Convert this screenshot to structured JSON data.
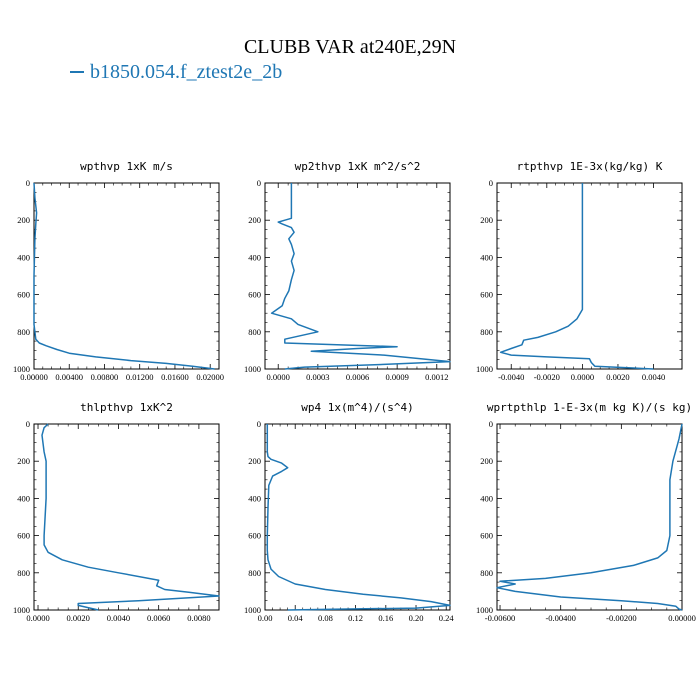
{
  "figure": {
    "title": "CLUBB VAR at240E,29N",
    "legend_label": "b1850.054.f_ztest2e_2b",
    "line_color": "#1f77b4"
  },
  "chart_data": [
    {
      "type": "line",
      "title": "wpthvp  1xK m/s",
      "xlim": [
        0,
        0.021
      ],
      "ylim": [
        1000,
        0
      ],
      "xticks": [
        0,
        0.004,
        0.008,
        0.012,
        0.016,
        0.02
      ],
      "xtick_labels": [
        "0.00000",
        "0.00400",
        "0.00800",
        "0.01200",
        "0.01600",
        "0.02000"
      ],
      "yticks": [
        0,
        200,
        400,
        600,
        800,
        1000
      ],
      "ytick_labels": [
        "0",
        "200",
        "400",
        "600",
        "800",
        "1000"
      ],
      "series": [
        {
          "x": [
            0,
            0.0001,
            0.0003,
            0.0002,
            0.0001,
            0,
            0,
            0.0001,
            0.0002,
            0.0006,
            0.0014,
            0.0026,
            0.004,
            0.007,
            0.011,
            0.015,
            0.018,
            0.0205
          ],
          "y": [
            0,
            80,
            160,
            220,
            300,
            500,
            760,
            800,
            840,
            860,
            875,
            895,
            915,
            935,
            955,
            970,
            985,
            1000
          ]
        }
      ]
    },
    {
      "type": "line",
      "title": "wp2thvp  1xK m^2/s^2",
      "xlim": [
        -0.0001,
        0.0013
      ],
      "ylim": [
        1000,
        0
      ],
      "xticks": [
        0,
        0.0003,
        0.0006,
        0.0009,
        0.0012
      ],
      "xtick_labels": [
        "0.0000",
        "0.0003",
        "0.0006",
        "0.0009",
        "0.0012"
      ],
      "yticks": [
        0,
        200,
        400,
        600,
        800,
        1000
      ],
      "ytick_labels": [
        "0",
        "200",
        "400",
        "600",
        "800",
        "1000"
      ],
      "series": [
        {
          "x": [
            0.0001,
            0.0001,
            0.0001,
            5e-05,
            0,
            3e-05,
            0.0001,
            0.00012,
            8e-05,
            0.0001,
            0.00012,
            0.0001,
            0.00012,
            0.0001,
            8e-05,
            5e-05,
            3e-05,
            -5e-05,
            0.0001,
            0.00015,
            0.0003,
            5e-05,
            5e-05,
            0.0009,
            0.0006,
            0.00025,
            0.0008,
            0.0013,
            0.0008,
            0.0002,
            5e-05
          ],
          "y": [
            0,
            100,
            190,
            200,
            210,
            220,
            240,
            265,
            300,
            330,
            380,
            420,
            470,
            520,
            580,
            620,
            660,
            700,
            730,
            760,
            800,
            840,
            860,
            880,
            890,
            905,
            925,
            960,
            975,
            990,
            1000
          ]
        }
      ]
    },
    {
      "type": "line",
      "title": "rtpthvp  1E-3x(kg/kg) K",
      "xlim": [
        -0.0048,
        0.0056
      ],
      "ylim": [
        1000,
        0
      ],
      "xticks": [
        -0.004,
        -0.002,
        0,
        0.002,
        0.004
      ],
      "xtick_labels": [
        "-0.0040",
        "-0.0020",
        "0.0000",
        "0.0020",
        "0.0040"
      ],
      "yticks": [
        0,
        200,
        400,
        600,
        800,
        1000
      ],
      "ytick_labels": [
        "0",
        "200",
        "400",
        "600",
        "800",
        "1000"
      ],
      "series": [
        {
          "x": [
            0,
            0,
            0,
            0,
            -0.0003,
            -0.0008,
            -0.0015,
            -0.0025,
            -0.0033,
            -0.0034,
            -0.004,
            -0.0046,
            -0.004,
            -0.002,
            0.0004,
            0.0005,
            0.0007,
            0.004
          ],
          "y": [
            0,
            300,
            600,
            680,
            730,
            770,
            800,
            830,
            845,
            870,
            890,
            910,
            925,
            935,
            945,
            965,
            985,
            1000
          ]
        }
      ]
    },
    {
      "type": "line",
      "title": "thlpthvp  1xK^2",
      "xlim": [
        -0.0002,
        0.009
      ],
      "ylim": [
        1000,
        0
      ],
      "xticks": [
        0,
        0.002,
        0.004,
        0.006,
        0.008
      ],
      "xtick_labels": [
        "0.0000",
        "0.0020",
        "0.0040",
        "0.0060",
        "0.0080"
      ],
      "yticks": [
        0,
        200,
        400,
        600,
        800,
        1000
      ],
      "ytick_labels": [
        "0",
        "200",
        "400",
        "600",
        "800",
        "1000"
      ],
      "series": [
        {
          "x": [
            0.0005,
            0.0003,
            0.0002,
            0.0003,
            0.0004,
            0.0004,
            0.0003,
            0.0003,
            0.0005,
            0.0012,
            0.0025,
            0.004,
            0.006,
            0.0059,
            0.0063,
            0.0075,
            0.009,
            0.005,
            0.002,
            0.002,
            0.003
          ],
          "y": [
            0,
            20,
            60,
            150,
            200,
            400,
            600,
            650,
            690,
            730,
            770,
            800,
            840,
            870,
            890,
            905,
            925,
            950,
            965,
            975,
            1000
          ]
        }
      ]
    },
    {
      "type": "line",
      "title": "wp4  1x(m^4)/(s^4)",
      "xlim": [
        0,
        0.245
      ],
      "ylim": [
        1000,
        0
      ],
      "xticks": [
        0,
        0.04,
        0.08,
        0.12,
        0.16,
        0.2,
        0.24
      ],
      "xtick_labels": [
        "0.00",
        "0.04",
        "0.08",
        "0.12",
        "0.16",
        "0.20",
        "0.24"
      ],
      "yticks": [
        0,
        200,
        400,
        600,
        800,
        1000
      ],
      "ytick_labels": [
        "0",
        "200",
        "400",
        "600",
        "800",
        "1000"
      ],
      "series": [
        {
          "x": [
            0.003,
            0.003,
            0.004,
            0.008,
            0.022,
            0.03,
            0.022,
            0.01,
            0.005,
            0.004,
            0.003,
            0.003,
            0.004,
            0.008,
            0.018,
            0.04,
            0.08,
            0.13,
            0.18,
            0.22,
            0.245,
            0.2,
            0.1,
            0.03
          ],
          "y": [
            0,
            150,
            175,
            190,
            210,
            235,
            255,
            280,
            330,
            450,
            600,
            680,
            730,
            780,
            820,
            860,
            890,
            915,
            935,
            955,
            975,
            990,
            995,
            1000
          ]
        }
      ]
    },
    {
      "type": "line",
      "title": "wprtpthlp  1-E-3x(m kg K)/(s kg)",
      "xlim": [
        -0.0061,
        0
      ],
      "ylim": [
        1000,
        0
      ],
      "xticks": [
        -0.006,
        -0.004,
        -0.002,
        0
      ],
      "xtick_labels": [
        "-0.00600",
        "-0.00400",
        "-0.00200",
        "0.00000"
      ],
      "yticks": [
        0,
        200,
        400,
        600,
        800,
        1000
      ],
      "ytick_labels": [
        "0",
        "200",
        "400",
        "600",
        "800",
        "1000"
      ],
      "series": [
        {
          "x": [
            0,
            -0.0001,
            -0.0003,
            -0.0004,
            -0.0004,
            -0.0004,
            -0.0005,
            -0.0008,
            -0.0016,
            -0.003,
            -0.0045,
            -0.006,
            -0.0055,
            -0.0061,
            -0.0055,
            -0.004,
            -0.002,
            -0.0008,
            -0.0002,
            -0.0001,
            0
          ],
          "y": [
            0,
            80,
            200,
            300,
            450,
            600,
            680,
            720,
            760,
            800,
            830,
            845,
            860,
            880,
            900,
            930,
            950,
            965,
            980,
            995,
            1000
          ]
        }
      ]
    }
  ]
}
